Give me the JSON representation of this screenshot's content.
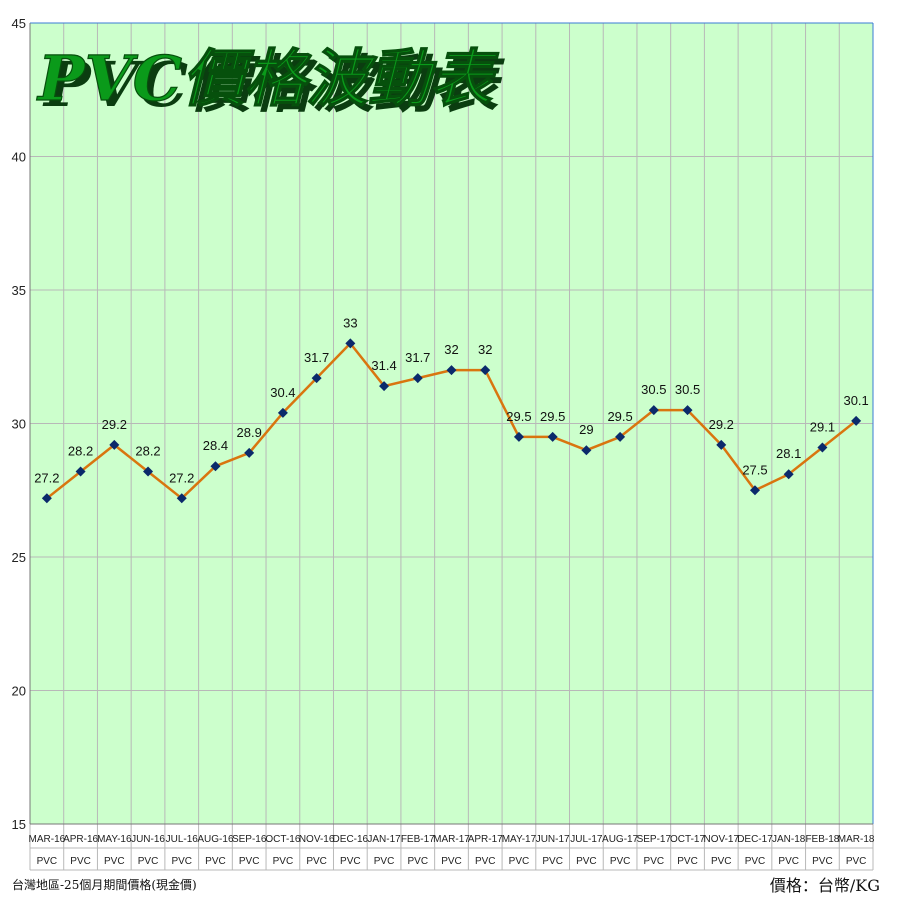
{
  "chart_data": {
    "type": "line",
    "title": "PVC價格波動表",
    "categories": [
      "MAR-16",
      "APR-16",
      "MAY-16",
      "JUN-16",
      "JUL-16",
      "AUG-16",
      "SEP-16",
      "OCT-16",
      "NOV-16",
      "DEC-16",
      "JAN-17",
      "FEB-17",
      "MAR-17",
      "APR-17",
      "MAY-17",
      "JUN-17",
      "JUL-17",
      "AUG-17",
      "SEP-17",
      "OCT-17",
      "NOV-17",
      "DEC-17",
      "JAN-18",
      "FEB-18",
      "MAR-18"
    ],
    "category_sublabel": "PVC",
    "series": [
      {
        "values": [
          27.2,
          28.2,
          29.2,
          28.2,
          27.2,
          28.4,
          28.9,
          30.4,
          31.7,
          33,
          31.4,
          31.7,
          32,
          32,
          29.5,
          29.5,
          29,
          29.5,
          30.5,
          30.5,
          29.2,
          27.5,
          28.1,
          29.1,
          30.1
        ]
      }
    ],
    "data_labels": [
      "27.2",
      "28.2",
      "29.2",
      "28.2",
      "27.2",
      "28.4",
      "28.9",
      "30.4",
      "31.7",
      "33",
      "31.4",
      "31.7",
      "32",
      "32",
      "29.5",
      "29.5",
      "29",
      "29.5",
      "30.5",
      "30.5",
      "29.2",
      "27.5",
      "28.1",
      "29.1",
      "30.1"
    ],
    "ylim": [
      15,
      45
    ],
    "yticks": [
      "15",
      "20",
      "25",
      "30",
      "35",
      "40",
      "45"
    ],
    "grid": true,
    "colors": {
      "plot_background": "#ccffcc",
      "line": "#d9750f",
      "marker": "#0b2a6b",
      "grid": "#b8b8b8"
    }
  },
  "footer": {
    "note": "台灣地區-25個月期間價格(現金價)",
    "unit": "價格：台幣/KG"
  }
}
